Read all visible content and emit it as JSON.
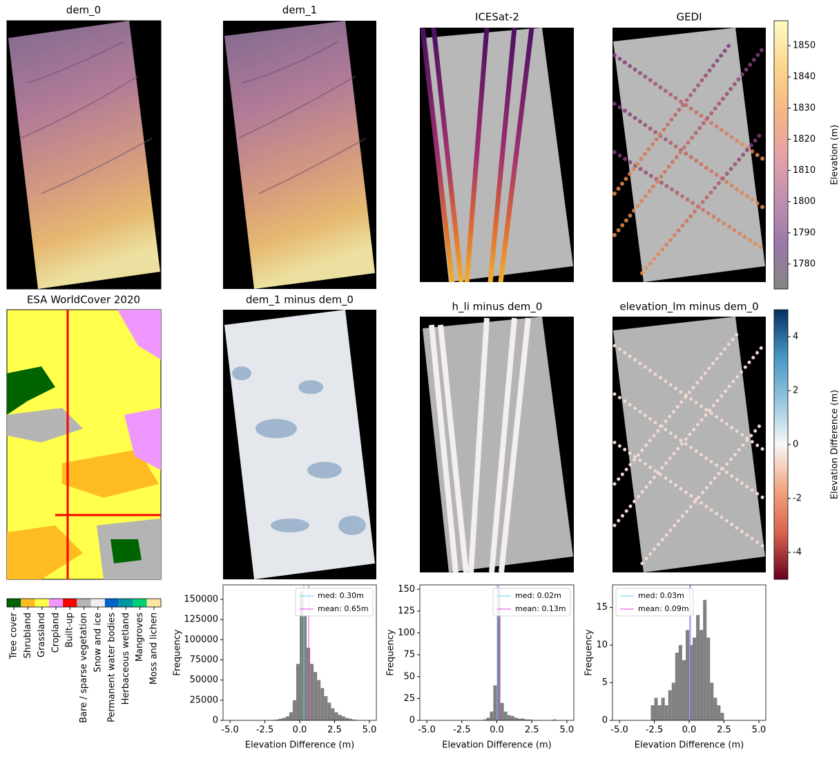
{
  "maps": [
    {
      "title": "dem_0"
    },
    {
      "title": "dem_1"
    },
    {
      "title": "ICESat-2"
    },
    {
      "title": "GEDI"
    },
    {
      "title": "ESA WorldCover 2020"
    },
    {
      "title": "dem_1 minus dem_0"
    },
    {
      "title": "h_li minus dem_0"
    },
    {
      "title": "elevation_lm minus dem_0"
    }
  ],
  "chart_data": [
    {
      "type": "colorbar",
      "label": "Elevation (m)",
      "ylim": [
        1772,
        1858
      ],
      "yticks": [
        1780,
        1790,
        1800,
        1810,
        1820,
        1830,
        1840,
        1850
      ],
      "colors": [
        "#858585",
        "#9a78a8",
        "#c08fb0",
        "#e6a3a6",
        "#f5b783",
        "#fbd78f",
        "#fffbc4"
      ]
    },
    {
      "type": "colorbar",
      "label": "Elevation Difference (m)",
      "ylim": [
        -5,
        5
      ],
      "yticks": [
        -4,
        -2,
        0,
        2,
        4
      ],
      "colors": [
        "#67001f",
        "#d6604d",
        "#f4a582",
        "#f7f7f7",
        "#92c5de",
        "#4393c3",
        "#053061"
      ]
    },
    {
      "type": "legend",
      "categories": [
        "Tree cover",
        "Shrubland",
        "Grassland",
        "Cropland",
        "Built-up",
        "Bare / sparse vegetation",
        "Snow and ice",
        "Permanent water bodies",
        "Herbaceous wetland",
        "Mangroves",
        "Moss and lichen"
      ],
      "colors": [
        "#006400",
        "#ffbb22",
        "#ffff4c",
        "#f096ff",
        "#fa0000",
        "#b4b4b4",
        "#f0f0f0",
        "#0064c8",
        "#0096a0",
        "#00cf75",
        "#fae6a0"
      ]
    },
    {
      "type": "histogram",
      "xlabel": "Elevation Difference (m)",
      "ylabel": "Frequency",
      "color": "#808080",
      "bins": [
        -5,
        -4.75,
        -4.5,
        -4.25,
        -4,
        -3.75,
        -3.5,
        -3.25,
        -3,
        -2.75,
        -2.5,
        -2.25,
        -2,
        -1.75,
        -1.5,
        -1.25,
        -1,
        -0.75,
        -0.5,
        -0.25,
        0,
        0.25,
        0.5,
        0.75,
        1,
        1.25,
        1.5,
        1.75,
        2,
        2.25,
        2.5,
        2.75,
        3,
        3.25,
        3.5,
        3.75,
        4,
        4.25,
        4.5,
        4.75,
        5
      ],
      "counts": [
        0,
        0,
        0,
        0,
        0,
        0,
        0,
        0,
        0,
        0,
        0,
        0,
        500,
        1000,
        2000,
        3000,
        5000,
        10000,
        25000,
        70000,
        160000,
        130000,
        90000,
        70000,
        60000,
        50000,
        40000,
        30000,
        22000,
        15000,
        10000,
        7000,
        5000,
        3000,
        2000,
        1000,
        500,
        200,
        100,
        0
      ],
      "xlim": [
        -5.5,
        5.5
      ],
      "xticks": [
        {
          "value": -5,
          "label": "-5.0"
        },
        {
          "value": -2.5,
          "label": "-2.5"
        },
        {
          "value": 0,
          "label": "0.0"
        },
        {
          "value": 2.5,
          "label": "2.5"
        },
        {
          "value": 5,
          "label": "5.0"
        }
      ],
      "ylim": [
        0,
        168000
      ],
      "yticks": [
        0,
        25000,
        50000,
        75000,
        100000,
        125000,
        150000
      ],
      "legend": "upper right",
      "lines": [
        {
          "name": "med: 0.30m",
          "value": 0.3,
          "color": "#5fd3f0"
        },
        {
          "name": "mean: 0.65m",
          "value": 0.65,
          "color": "#e040e0"
        }
      ]
    },
    {
      "type": "histogram",
      "xlabel": "Elevation Difference (m)",
      "ylabel": "Frequency",
      "color": "#808080",
      "bins": [
        -5,
        -4.75,
        -4.5,
        -4.25,
        -4,
        -3.75,
        -3.5,
        -3.25,
        -3,
        -2.75,
        -2.5,
        -2.25,
        -2,
        -1.75,
        -1.5,
        -1.25,
        -1,
        -0.75,
        -0.5,
        -0.25,
        0,
        0.25,
        0.5,
        0.75,
        1,
        1.25,
        1.5,
        1.75,
        2,
        2.25,
        2.5,
        2.75,
        3,
        3.25,
        3.5,
        3.75,
        4,
        4.25,
        4.5,
        4.75,
        5
      ],
      "counts": [
        0,
        0,
        0,
        0,
        0,
        0,
        0,
        0,
        0,
        0,
        0,
        0,
        0,
        0,
        0,
        0,
        1,
        3,
        10,
        40,
        150,
        20,
        10,
        6,
        5,
        3,
        2,
        2,
        1,
        1,
        0,
        0,
        0,
        0,
        0,
        0,
        1,
        0,
        0,
        0
      ],
      "xlim": [
        -5.5,
        5.5
      ],
      "xticks": [
        {
          "value": -5,
          "label": "-5.0"
        },
        {
          "value": -2.5,
          "label": "-2.5"
        },
        {
          "value": 0,
          "label": "0.0"
        },
        {
          "value": 2.5,
          "label": "2.5"
        },
        {
          "value": 5,
          "label": "5.0"
        }
      ],
      "ylim": [
        0,
        155
      ],
      "yticks": [
        0,
        25,
        50,
        75,
        100,
        125,
        150
      ],
      "legend": "upper right",
      "lines": [
        {
          "name": "med: 0.02m",
          "value": 0.02,
          "color": "#5fd3f0"
        },
        {
          "name": "mean: 0.13m",
          "value": 0.13,
          "color": "#e040e0"
        }
      ]
    },
    {
      "type": "histogram",
      "xlabel": "Elevation Difference (m)",
      "ylabel": "Frequency",
      "color": "#808080",
      "bins": [
        -5,
        -4.75,
        -4.5,
        -4.25,
        -4,
        -3.75,
        -3.5,
        -3.25,
        -3,
        -2.75,
        -2.5,
        -2.25,
        -2,
        -1.75,
        -1.5,
        -1.25,
        -1,
        -0.75,
        -0.5,
        -0.25,
        0,
        0.25,
        0.5,
        0.75,
        1,
        1.25,
        1.5,
        1.75,
        2,
        2.25,
        2.5,
        2.75,
        3,
        3.25,
        3.5,
        3.75,
        4,
        4.25,
        4.5,
        4.75,
        5
      ],
      "counts": [
        0,
        0,
        0,
        0,
        0,
        0,
        0,
        0,
        0,
        2,
        3,
        2,
        3,
        2,
        4,
        5,
        9,
        10,
        8,
        12,
        10,
        11,
        14,
        12,
        16,
        11,
        5,
        3,
        2,
        1,
        0,
        0,
        0,
        0,
        0,
        0,
        0,
        0,
        0,
        0
      ],
      "xlim": [
        -5.5,
        5.5
      ],
      "xticks": [
        {
          "value": -5,
          "label": "-5.0"
        },
        {
          "value": -2.5,
          "label": "-2.5"
        },
        {
          "value": 0,
          "label": "0.0"
        },
        {
          "value": 2.5,
          "label": "2.5"
        },
        {
          "value": 5,
          "label": "5.0"
        }
      ],
      "ylim": [
        0,
        18
      ],
      "yticks": [
        0,
        5,
        10,
        15
      ],
      "legend": "upper left",
      "lines": [
        {
          "name": "med: 0.03m",
          "value": 0.03,
          "color": "#5fd3f0"
        },
        {
          "name": "mean: 0.09m",
          "value": 0.09,
          "color": "#e040e0"
        }
      ]
    }
  ]
}
